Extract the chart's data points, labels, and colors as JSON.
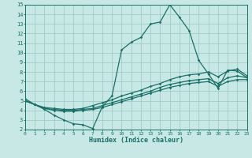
{
  "xlabel": "Humidex (Indice chaleur)",
  "xlim": [
    0,
    23
  ],
  "ylim": [
    2,
    15
  ],
  "xticks": [
    0,
    1,
    2,
    3,
    4,
    5,
    6,
    7,
    8,
    9,
    10,
    11,
    12,
    13,
    14,
    15,
    16,
    17,
    18,
    19,
    20,
    21,
    22,
    23
  ],
  "yticks": [
    2,
    3,
    4,
    5,
    6,
    7,
    8,
    9,
    10,
    11,
    12,
    13,
    14,
    15
  ],
  "bg_color": "#c8e8e5",
  "grid_color": "#a0ccc8",
  "line_color": "#1a7068",
  "line_width": 0.9,
  "marker_size": 1.8,
  "curves": [
    {
      "x": [
        0,
        1,
        2,
        3,
        4,
        5,
        6,
        7,
        8,
        9,
        10,
        11,
        12,
        13,
        14,
        15,
        16,
        17,
        18,
        19,
        20,
        21,
        22,
        23
      ],
      "y": [
        5.2,
        4.6,
        4.1,
        3.5,
        3.0,
        2.6,
        2.5,
        2.1,
        4.4,
        5.5,
        10.3,
        11.1,
        11.6,
        13.0,
        13.2,
        15.0,
        13.7,
        12.3,
        9.2,
        7.8,
        6.3,
        8.2,
        8.1,
        7.4
      ]
    },
    {
      "x": [
        0,
        1,
        2,
        3,
        4,
        5,
        6,
        7,
        8,
        9,
        10,
        11,
        12,
        13,
        14,
        15,
        16,
        17,
        18,
        19,
        20,
        21,
        22,
        23
      ],
      "y": [
        5.0,
        4.6,
        4.3,
        4.2,
        4.1,
        4.1,
        4.2,
        4.5,
        4.8,
        5.1,
        5.5,
        5.8,
        6.1,
        6.5,
        6.8,
        7.2,
        7.5,
        7.7,
        7.8,
        8.0,
        7.5,
        8.1,
        8.3,
        7.6
      ]
    },
    {
      "x": [
        0,
        1,
        2,
        3,
        4,
        5,
        6,
        7,
        8,
        9,
        10,
        11,
        12,
        13,
        14,
        15,
        16,
        17,
        18,
        19,
        20,
        21,
        22,
        23
      ],
      "y": [
        5.0,
        4.6,
        4.2,
        4.1,
        4.0,
        4.0,
        4.1,
        4.2,
        4.5,
        4.8,
        5.1,
        5.4,
        5.7,
        6.0,
        6.4,
        6.7,
        6.9,
        7.1,
        7.2,
        7.3,
        6.8,
        7.4,
        7.6,
        7.4
      ]
    },
    {
      "x": [
        0,
        1,
        2,
        3,
        4,
        5,
        6,
        7,
        8,
        9,
        10,
        11,
        12,
        13,
        14,
        15,
        16,
        17,
        18,
        19,
        20,
        21,
        22,
        23
      ],
      "y": [
        5.0,
        4.6,
        4.2,
        4.0,
        3.9,
        3.9,
        4.0,
        4.1,
        4.3,
        4.6,
        4.9,
        5.2,
        5.5,
        5.8,
        6.1,
        6.4,
        6.6,
        6.8,
        6.9,
        7.0,
        6.5,
        7.0,
        7.2,
        7.2
      ]
    }
  ]
}
